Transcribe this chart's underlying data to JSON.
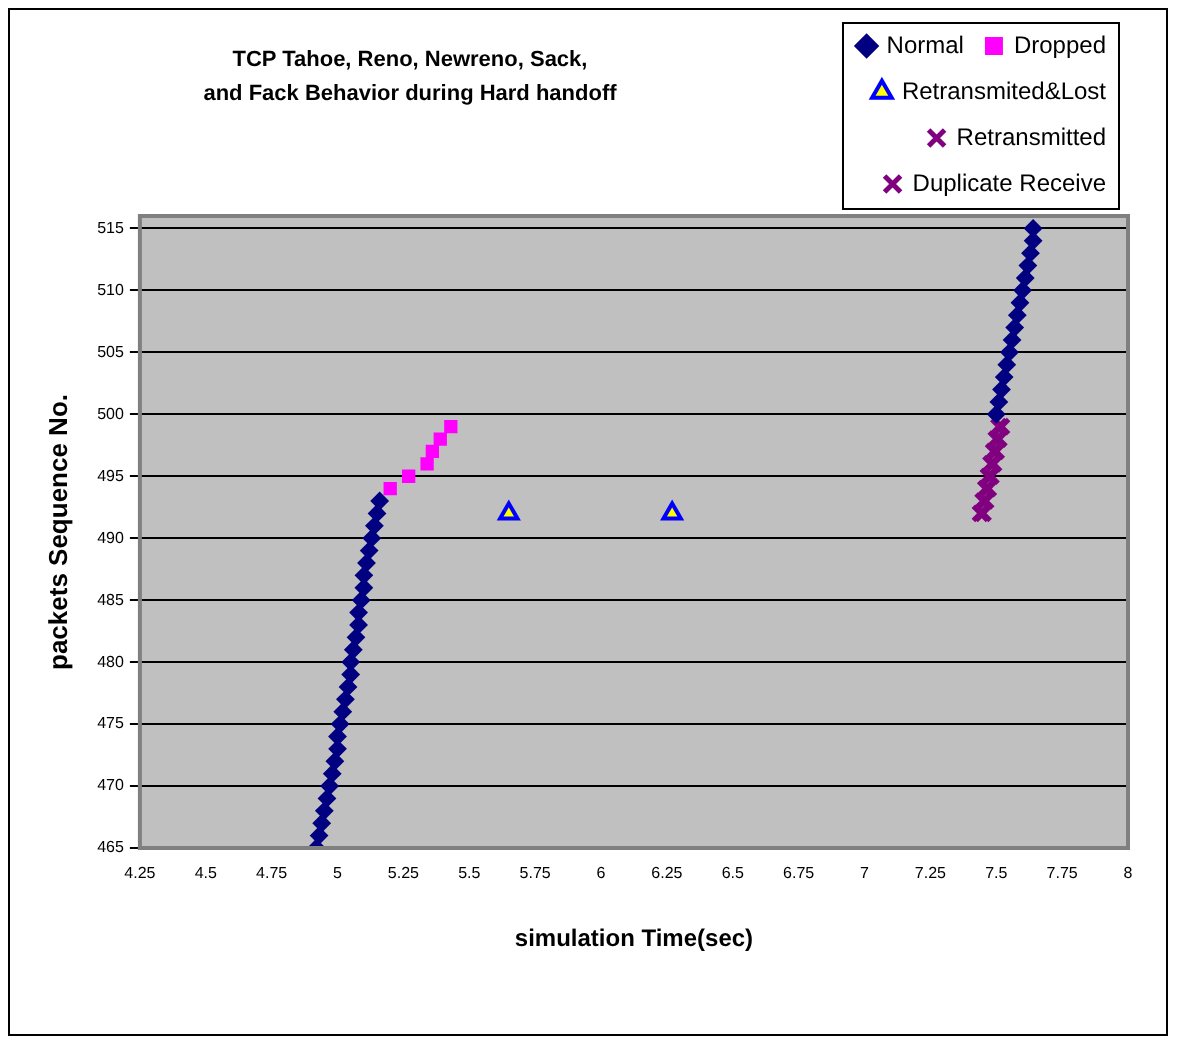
{
  "chart_data": {
    "type": "scatter",
    "title": "TCP Tahoe, Reno, Newreno, Sack,\nand Fack Behavior during Hard handoff",
    "xlabel": "simulation Time(sec)",
    "ylabel": "packets Sequence No.",
    "xlim": [
      4.25,
      8
    ],
    "xticks": [
      4.25,
      4.5,
      4.75,
      5,
      5.25,
      5.5,
      5.75,
      6,
      6.25,
      6.5,
      6.75,
      7,
      7.25,
      7.5,
      7.75,
      8
    ],
    "ylim": [
      465,
      516
    ],
    "yticks": [
      465,
      470,
      475,
      480,
      485,
      490,
      495,
      500,
      505,
      510,
      515
    ],
    "grid": "y",
    "legend": "top right",
    "series": [
      {
        "name": "Normal",
        "color": "#000080",
        "marker": "diamond",
        "x": [
          4.92,
          4.93,
          4.94,
          4.95,
          4.96,
          4.97,
          4.98,
          4.99,
          5.0,
          5.0,
          5.01,
          5.02,
          5.03,
          5.04,
          5.05,
          5.05,
          5.06,
          5.07,
          5.08,
          5.08,
          5.09,
          5.1,
          5.1,
          5.11,
          5.12,
          5.13,
          5.14,
          5.15,
          5.16,
          7.5,
          7.51,
          7.52,
          7.53,
          7.54,
          7.55,
          7.56,
          7.57,
          7.58,
          7.59,
          7.6,
          7.61,
          7.62,
          7.63,
          7.64,
          7.64
        ],
        "values": [
          465,
          466,
          467,
          468,
          469,
          470,
          471,
          472,
          473,
          474,
          475,
          476,
          477,
          478,
          479,
          480,
          481,
          482,
          483,
          484,
          485,
          486,
          487,
          488,
          489,
          490,
          491,
          492,
          493,
          500,
          501,
          502,
          503,
          504,
          505,
          506,
          507,
          508,
          509,
          510,
          511,
          512,
          513,
          514,
          515
        ]
      },
      {
        "name": "Dropped",
        "color": "#ff00ff",
        "marker": "square",
        "x": [
          5.2,
          5.27,
          5.34,
          5.36,
          5.39,
          5.43
        ],
        "values": [
          494,
          495,
          496,
          497,
          498,
          499
        ]
      },
      {
        "name": "Retransmited&Lost",
        "color": "#0000ff",
        "marker": "triangle",
        "x": [
          5.65,
          6.27
        ],
        "values": [
          492,
          492
        ]
      },
      {
        "name": "Retransmitted",
        "color": "#800080",
        "marker": "cross",
        "x": [
          7.44,
          7.45,
          7.46,
          7.47,
          7.48,
          7.49,
          7.5,
          7.51
        ],
        "values": [
          492,
          493,
          494,
          495,
          496,
          497,
          498,
          499
        ]
      },
      {
        "name": "Duplicate Receive",
        "color": "#800080",
        "marker": "cross",
        "x": [
          7.45,
          7.46,
          7.47,
          7.48,
          7.49,
          7.5,
          7.51,
          7.52
        ],
        "values": [
          492,
          493,
          494,
          495,
          496,
          497,
          498,
          499
        ]
      }
    ]
  }
}
